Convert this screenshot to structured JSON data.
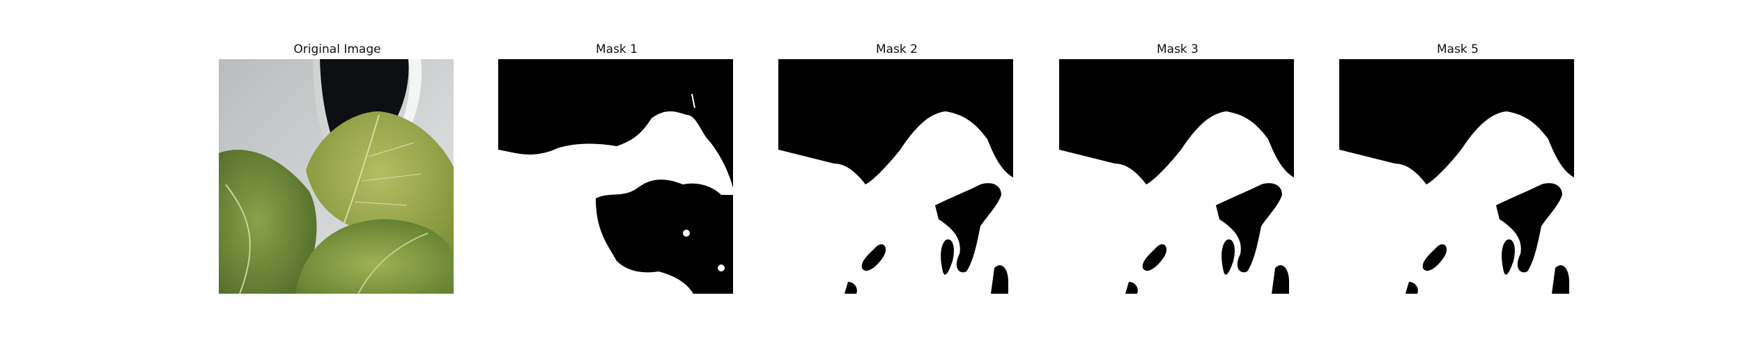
{
  "panels": [
    {
      "title": "Original Image",
      "kind": "photo"
    },
    {
      "title": "Mask 1",
      "kind": "mask"
    },
    {
      "title": "Mask 2",
      "kind": "mask"
    },
    {
      "title": "Mask 3",
      "kind": "mask"
    },
    {
      "title": "Mask 5",
      "kind": "mask"
    }
  ]
}
